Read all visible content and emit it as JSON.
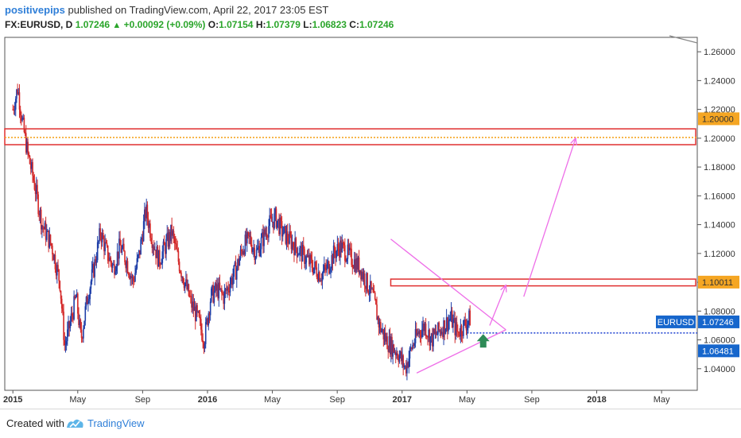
{
  "header": {
    "author": "positivepips",
    "published": "published on TradingView.com, April 22, 2017 23:05 EST",
    "symbol": "FX:EURUSD, D",
    "last": "1.07246",
    "change": "+0.00092 (+0.09%)",
    "o_label": "O:",
    "o_value": "1.07154",
    "h_label": "H:",
    "h_value": "1.07379",
    "l_label": "L:",
    "l_value": "1.06823",
    "c_label": "C:",
    "c_value": "1.07246"
  },
  "footer": {
    "created_with": "Created with",
    "brand": "TradingView"
  },
  "colors": {
    "up": "#1f3fa8",
    "down": "#d42a2a",
    "zone": "#e03030",
    "pink": "#ee6ee8",
    "price_label": "#1666cc",
    "level_label": "#f5a623",
    "dotted_blue": "#1a3fd0",
    "arrow": "#2e8b57",
    "dotted_orange": "#f5a623"
  },
  "chart_data": {
    "type": "candlestick",
    "symbol": "EURUSD",
    "timeframe": "D",
    "y_ticks": [
      "1.26000",
      "1.24000",
      "1.22000",
      "1.20000",
      "1.18000",
      "1.16000",
      "1.14000",
      "1.12000",
      "1.10000",
      "1.08000",
      "1.06000",
      "1.04000"
    ],
    "ylim": [
      1.025,
      1.27
    ],
    "x_ticks": [
      "2015",
      "May",
      "Sep",
      "2016",
      "May",
      "Sep",
      "2017",
      "May",
      "Sep",
      "2018",
      "May"
    ],
    "x_tick_t": [
      0.0,
      4.0,
      8.0,
      12.0,
      16.0,
      20.0,
      24.0,
      28.0,
      32.0,
      36.0,
      40.0
    ],
    "xlim": [
      -0.5,
      42.2
    ],
    "price_labels": [
      {
        "text": "1.20000",
        "y": 1.2135,
        "style": "level"
      },
      {
        "text": "1.10011",
        "y": 1.1001,
        "style": "level"
      },
      {
        "text": "EURUSD",
        "y": 1.0725,
        "style": "name"
      },
      {
        "text": "1.07246",
        "y": 1.0725,
        "style": "price"
      },
      {
        "text": "1.06481",
        "y": 1.0524,
        "style": "price"
      }
    ],
    "price_path": [
      [
        0.0,
        1.22
      ],
      [
        0.3,
        1.235
      ],
      [
        0.6,
        1.21
      ],
      [
        0.9,
        1.19
      ],
      [
        1.3,
        1.17
      ],
      [
        1.8,
        1.14
      ],
      [
        2.4,
        1.125
      ],
      [
        2.9,
        1.1
      ],
      [
        3.2,
        1.055
      ],
      [
        3.5,
        1.07
      ],
      [
        3.9,
        1.09
      ],
      [
        4.2,
        1.06
      ],
      [
        4.6,
        1.09
      ],
      [
        5.0,
        1.11
      ],
      [
        5.4,
        1.135
      ],
      [
        5.8,
        1.12
      ],
      [
        6.2,
        1.11
      ],
      [
        6.6,
        1.125
      ],
      [
        7.0,
        1.115
      ],
      [
        7.4,
        1.1
      ],
      [
        7.8,
        1.12
      ],
      [
        8.2,
        1.15
      ],
      [
        8.6,
        1.13
      ],
      [
        9.0,
        1.115
      ],
      [
        9.4,
        1.125
      ],
      [
        9.8,
        1.135
      ],
      [
        10.2,
        1.115
      ],
      [
        10.6,
        1.1
      ],
      [
        11.0,
        1.085
      ],
      [
        11.4,
        1.075
      ],
      [
        11.8,
        1.06
      ],
      [
        12.2,
        1.09
      ],
      [
        12.6,
        1.095
      ],
      [
        13.0,
        1.09
      ],
      [
        13.4,
        1.1
      ],
      [
        13.8,
        1.11
      ],
      [
        14.2,
        1.125
      ],
      [
        14.6,
        1.13
      ],
      [
        15.0,
        1.12
      ],
      [
        15.4,
        1.13
      ],
      [
        15.8,
        1.14
      ],
      [
        16.2,
        1.145
      ],
      [
        16.6,
        1.135
      ],
      [
        17.0,
        1.13
      ],
      [
        17.4,
        1.125
      ],
      [
        17.8,
        1.12
      ],
      [
        18.2,
        1.115
      ],
      [
        18.6,
        1.11
      ],
      [
        19.0,
        1.105
      ],
      [
        19.4,
        1.11
      ],
      [
        19.8,
        1.12
      ],
      [
        20.2,
        1.125
      ],
      [
        20.6,
        1.12
      ],
      [
        21.0,
        1.115
      ],
      [
        21.4,
        1.11
      ],
      [
        21.8,
        1.1
      ],
      [
        22.2,
        1.09
      ],
      [
        22.6,
        1.07
      ],
      [
        23.0,
        1.06
      ],
      [
        23.4,
        1.055
      ],
      [
        23.8,
        1.05
      ],
      [
        24.2,
        1.04
      ],
      [
        24.6,
        1.055
      ],
      [
        25.0,
        1.065
      ],
      [
        25.4,
        1.07
      ],
      [
        25.8,
        1.06
      ],
      [
        26.2,
        1.065
      ],
      [
        26.6,
        1.07
      ],
      [
        27.0,
        1.075
      ],
      [
        27.4,
        1.065
      ],
      [
        27.8,
        1.07
      ],
      [
        28.2,
        1.075
      ]
    ],
    "zones": [
      {
        "y1": 1.1955,
        "y2": 1.2065
      },
      {
        "y1": 1.0975,
        "y2": 1.1022,
        "x1": 23.3
      }
    ],
    "dotted_lines": [
      {
        "y": 1.2005,
        "x1": -0.5,
        "x2": 42.2,
        "color": "dotted_orange"
      },
      {
        "y": 1.0648,
        "x1": 28.0,
        "x2": 42.2,
        "color": "dotted_blue"
      }
    ],
    "pink_lines": [
      [
        [
          23.3,
          1.13
        ],
        [
          30.4,
          1.067
        ]
      ],
      [
        [
          24.9,
          1.037
        ],
        [
          30.4,
          1.067
        ]
      ],
      [
        [
          29.4,
          1.07
        ],
        [
          30.4,
          1.098
        ]
      ],
      [
        [
          31.5,
          1.09
        ],
        [
          34.7,
          1.2
        ]
      ]
    ],
    "pink_arrows": [
      {
        "from": [
          29.4,
          1.07
        ],
        "to": [
          30.4,
          1.098
        ]
      },
      {
        "from": [
          31.5,
          1.09
        ],
        "to": [
          34.7,
          1.2
        ]
      }
    ],
    "green_arrow": {
      "t": 29.0,
      "y": 1.058
    }
  }
}
